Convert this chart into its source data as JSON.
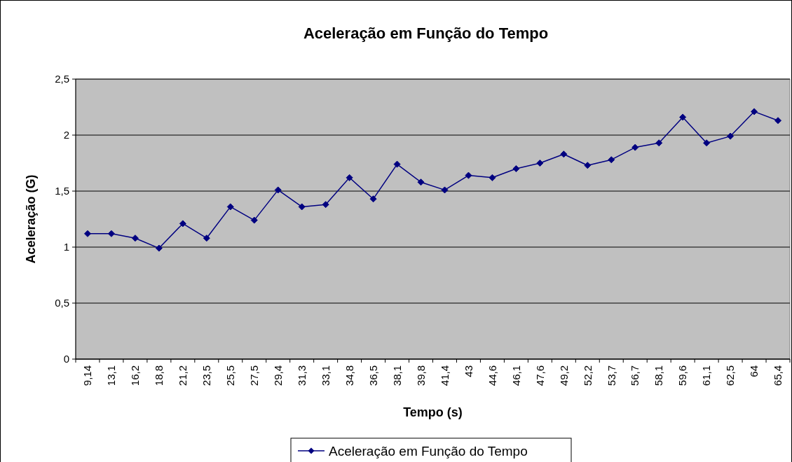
{
  "chart_data": {
    "type": "line",
    "title": "Aceleração em Função do Tempo",
    "xlabel": "Tempo (s)",
    "ylabel": "Aceleração (G)",
    "categories": [
      "9,14",
      "13,1",
      "16,2",
      "18,8",
      "21,2",
      "23,5",
      "25,5",
      "27,5",
      "29,4",
      "31,3",
      "33,1",
      "34,8",
      "36,5",
      "38,1",
      "39,8",
      "41,4",
      "43",
      "44,6",
      "46,1",
      "47,6",
      "49,2",
      "52,2",
      "53,7",
      "56,7",
      "58,1",
      "59,6",
      "61,1",
      "62,5",
      "64",
      "65,4"
    ],
    "series": [
      {
        "name": "Aceleração em Função do Tempo",
        "color": "#000080",
        "values": [
          1.12,
          1.12,
          1.08,
          0.99,
          1.21,
          1.08,
          1.36,
          1.24,
          1.51,
          1.36,
          1.38,
          1.62,
          1.43,
          1.74,
          1.58,
          1.51,
          1.64,
          1.62,
          1.7,
          1.75,
          1.83,
          1.73,
          1.78,
          1.89,
          1.93,
          2.16,
          1.93,
          1.99,
          2.21,
          2.13
        ]
      }
    ],
    "ylim": [
      0,
      2.5
    ],
    "yticks": [
      0,
      {
        "value": 0.5,
        "label": "0,5"
      },
      1,
      {
        "value": 1.5,
        "label": "1,5"
      },
      2,
      {
        "value": 2.5,
        "label": "2,5"
      }
    ],
    "grid": "y",
    "legend": "bottom",
    "marker": "diamond",
    "line_style": "solid"
  }
}
